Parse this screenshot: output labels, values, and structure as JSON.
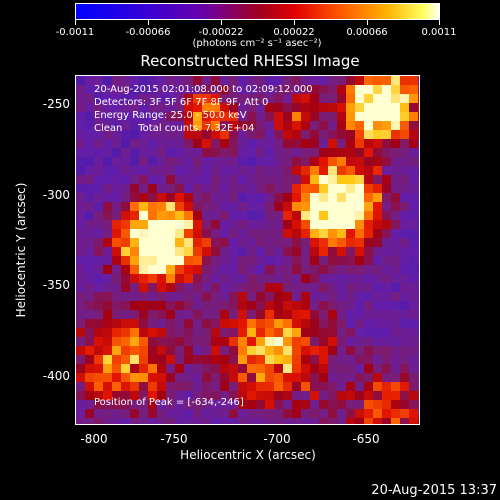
{
  "colorbar": {
    "tick_labels": [
      "-0.0011",
      "-0.00066",
      "-0.00022",
      "0.00022",
      "0.00066",
      "0.0011"
    ],
    "units": "(photons cm⁻² s⁻¹ asec⁻²)",
    "colors": [
      "#0000ff",
      "#4000c0",
      "#7a00a0",
      "#b00030",
      "#ff2000",
      "#ff8000",
      "#ffd000",
      "#ffffff"
    ]
  },
  "title": "Reconstructed RHESSI Image",
  "info": {
    "time_range": "20-Aug-2015 02:01:08.000 to 02:09:12.000",
    "detectors": "Detectors: 3F 5F 6F 7F 8F 9F, Att 0",
    "energy": "Energy Range: 25.0 - 50.0 keV",
    "clean": "Clean     Total counts: 7.32E+04",
    "peak": "Position of Peak = [-634,-246]"
  },
  "axes": {
    "xlabel": "Heliocentric X (arcsec)",
    "ylabel": "Heliocentric Y (arcsec)",
    "x_ticks": [
      "-800",
      "-750",
      "-700",
      "-650"
    ],
    "y_ticks": [
      "-250",
      "-300",
      "-350",
      "-400"
    ]
  },
  "timestamp": "20-Aug-2015 13:37"
}
